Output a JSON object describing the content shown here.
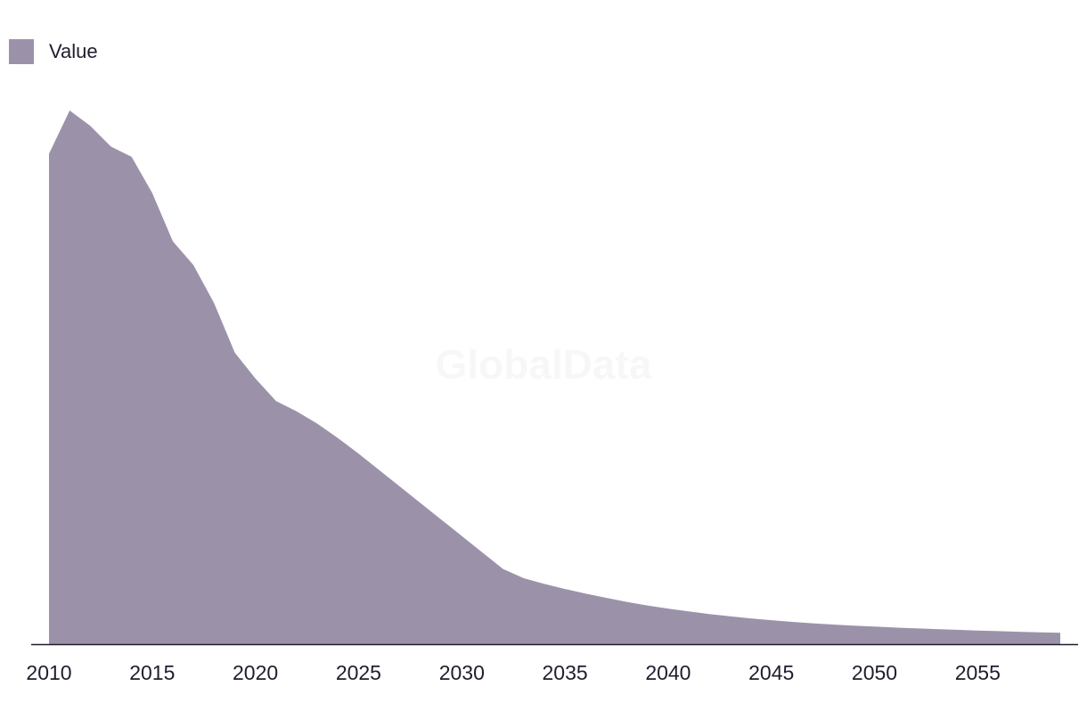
{
  "legend": {
    "label": "Value"
  },
  "watermark": "GlobalData",
  "colors": {
    "area": "#9b92aa",
    "axis": "#1f1d2e",
    "text": "#1f1d2e"
  },
  "chart_data": {
    "type": "area",
    "title": "",
    "xlabel": "",
    "ylabel": "",
    "grid": false,
    "legend_position": "top-left",
    "series": [
      {
        "name": "Value",
        "x": [
          2010,
          2011,
          2012,
          2013,
          2014,
          2015,
          2016,
          2017,
          2018,
          2019,
          2020,
          2021,
          2022,
          2023,
          2024,
          2025,
          2026,
          2027,
          2028,
          2029,
          2030,
          2031,
          2032,
          2033,
          2034,
          2035,
          2036,
          2037,
          2038,
          2039,
          2040,
          2041,
          2042,
          2043,
          2044,
          2045,
          2046,
          2047,
          2048,
          2049,
          2050,
          2051,
          2052,
          2053,
          2054,
          2055,
          2056,
          2057,
          2058,
          2059
        ],
        "values": [
          91.6,
          100.0,
          97.0,
          93.0,
          91.0,
          84.0,
          74.6,
          70.0,
          62.6,
          53.0,
          48.0,
          43.6,
          41.6,
          39.2,
          36.4,
          33.4,
          30.2,
          27.0,
          23.8,
          20.6,
          17.4,
          14.2,
          11.0,
          9.2,
          8.1,
          7.1,
          6.2,
          5.4,
          4.6,
          3.9,
          3.3,
          2.75,
          2.25,
          1.8,
          1.4,
          1.05,
          0.72,
          0.45,
          0.2,
          0.0,
          -0.2,
          -0.38,
          -0.54,
          -0.68,
          -0.82,
          -0.96,
          -1.08,
          -1.2,
          -1.3,
          -1.4
        ]
      }
    ],
    "x_ticks": [
      2010,
      2015,
      2020,
      2025,
      2030,
      2035,
      2040,
      2045,
      2050,
      2055
    ],
    "xlim": [
      2010,
      2059
    ],
    "ylim": [
      -3.6,
      100
    ]
  }
}
